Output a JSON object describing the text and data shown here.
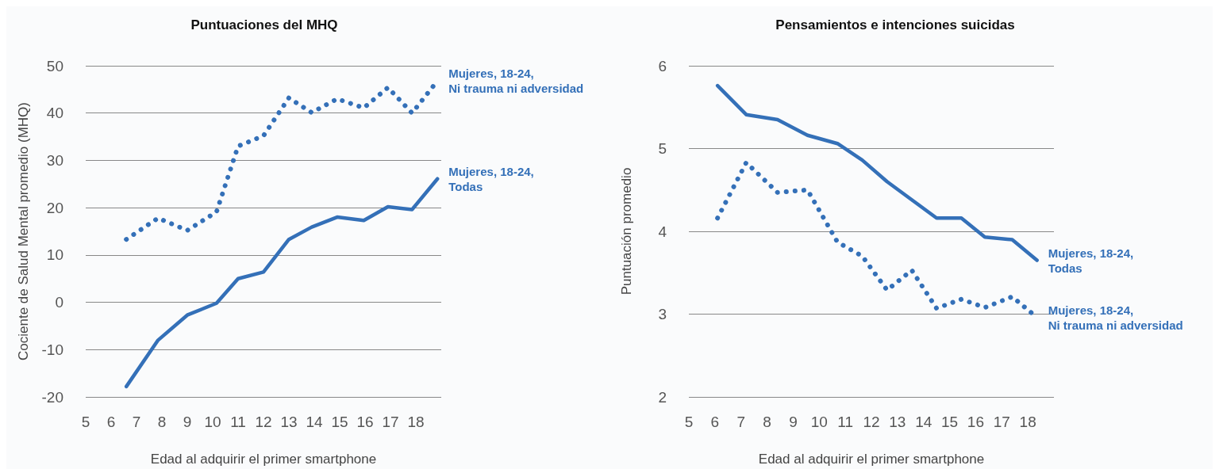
{
  "chart_data": [
    {
      "type": "line",
      "title": "Puntuaciones del MHQ",
      "xlabel": "Edad al adquirir el primer smartphone",
      "ylabel": "Cociente de Salud Mental promedio (MHQ)",
      "xlim": [
        5,
        19
      ],
      "xticks": [
        5,
        6,
        7,
        8,
        9,
        10,
        11,
        12,
        13,
        14,
        15,
        16,
        17,
        18
      ],
      "ylim": [
        -20,
        50
      ],
      "yticks": [
        -20,
        -10,
        0,
        10,
        20,
        30,
        40,
        50
      ],
      "grid": "y",
      "marker": "none",
      "series": [
        {
          "name": "Mujeres, 18-24,\nNi trauma ni adversidad",
          "color": "#3470b8",
          "line_style": "dotted",
          "x": [
            6.6,
            7.85,
            9.0,
            10.15,
            11.0,
            12.0,
            13.0,
            13.9,
            14.9,
            15.95,
            16.9,
            17.85,
            18.85
          ],
          "values": [
            13.3,
            17.8,
            15.2,
            19.1,
            33.0,
            35.2,
            43.2,
            40.1,
            43.0,
            41.1,
            45.4,
            40.0,
            46.8
          ]
        },
        {
          "name": "Mujeres, 18-24,\nTodas",
          "color": "#3470b8",
          "line_style": "solid",
          "x": [
            6.6,
            7.85,
            9.0,
            10.15,
            11.0,
            12.0,
            13.0,
            13.9,
            14.9,
            15.95,
            16.9,
            17.85,
            18.85
          ],
          "values": [
            -17.8,
            -8.0,
            -2.7,
            -0.2,
            5.0,
            6.4,
            13.3,
            15.9,
            18.0,
            17.3,
            20.2,
            19.6,
            26.1
          ]
        }
      ]
    },
    {
      "type": "line",
      "title": "Pensamientos e intenciones suicidas",
      "xlabel": "Edad al adquirir el primer smartphone",
      "ylabel": "Puntuación promedio",
      "xlim": [
        5,
        19
      ],
      "xticks": [
        5,
        6,
        7,
        8,
        9,
        10,
        11,
        12,
        13,
        14,
        15,
        16,
        17,
        18
      ],
      "ylim": [
        2,
        6
      ],
      "yticks": [
        2,
        3,
        4,
        5,
        6
      ],
      "grid": "y",
      "marker": "none",
      "series": [
        {
          "name": "Mujeres, 18-24,\nTodas",
          "color": "#3470b8",
          "line_style": "solid",
          "x": [
            6.1,
            7.2,
            8.4,
            9.55,
            10.7,
            11.65,
            12.6,
            13.55,
            14.5,
            15.45,
            16.35,
            17.4,
            18.35
          ],
          "values": [
            5.76,
            5.41,
            5.35,
            5.16,
            5.06,
            4.86,
            4.6,
            4.38,
            4.16,
            4.16,
            3.93,
            3.9,
            3.65
          ]
        },
        {
          "name": "Mujeres, 18-24,\nNi trauma ni adversidad",
          "color": "#3470b8",
          "line_style": "dotted",
          "x": [
            6.1,
            7.2,
            8.4,
            9.55,
            10.7,
            11.65,
            12.6,
            13.55,
            14.5,
            15.45,
            16.35,
            17.4,
            18.35
          ],
          "values": [
            4.16,
            4.83,
            4.47,
            4.5,
            3.87,
            3.7,
            3.29,
            3.53,
            3.07,
            3.18,
            3.08,
            3.21,
            2.96
          ]
        }
      ]
    }
  ]
}
